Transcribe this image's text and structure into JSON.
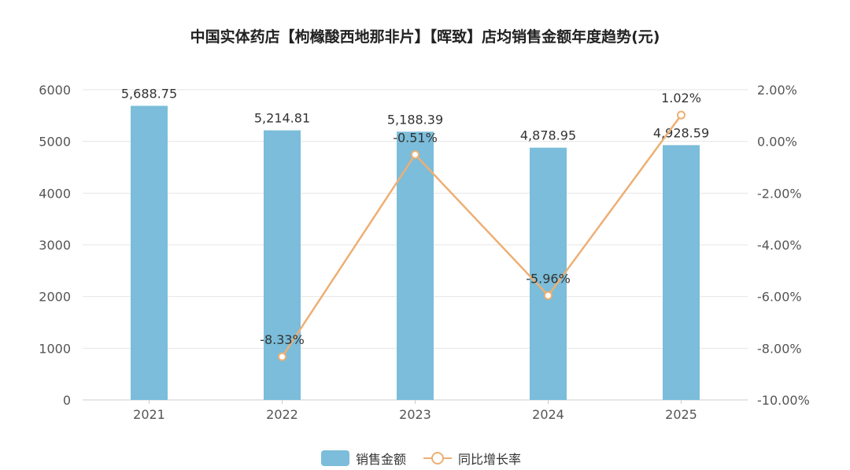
{
  "chart_data": {
    "type": "bar",
    "title": "中国实体药店【枸橼酸西地那非片】【晖致】店均销售金额年度趋势(元)",
    "categories": [
      "2021",
      "2022",
      "2023",
      "2024",
      "2025"
    ],
    "series": [
      {
        "name": "销售金额",
        "type": "bar",
        "axis": "left",
        "color": "#7BBDDA",
        "values": [
          5688.75,
          5214.81,
          5188.39,
          4878.95,
          4928.59
        ],
        "labels": [
          "5,688.75",
          "5,214.81",
          "5,188.39",
          "4,878.95",
          "4,928.59"
        ]
      },
      {
        "name": "同比增长率",
        "type": "line",
        "axis": "right",
        "color": "#EDAF74",
        "values": [
          null,
          -8.33,
          -0.51,
          -5.96,
          1.02
        ],
        "labels": [
          "",
          "-8.33%",
          "-0.51%",
          "-5.96%",
          "1.02%"
        ]
      }
    ],
    "y_left": {
      "ylim": [
        0,
        6000
      ],
      "ticks": [
        "0",
        "1000",
        "2000",
        "3000",
        "4000",
        "5000",
        "6000"
      ]
    },
    "y_right": {
      "ylim": [
        -10,
        2
      ],
      "ticks": [
        "-10.00%",
        "-8.00%",
        "-6.00%",
        "-4.00%",
        "-2.00%",
        "0.00%",
        "2.00%"
      ]
    },
    "grid": true,
    "legend": "bottom-center"
  }
}
